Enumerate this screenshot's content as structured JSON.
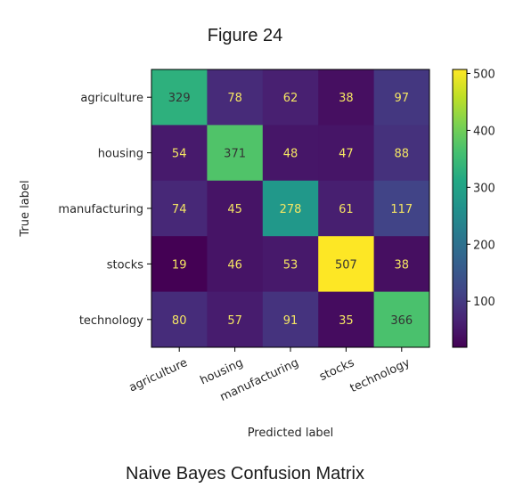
{
  "figure": {
    "title": "Figure 24",
    "caption": "Naive Bayes Confusion Matrix"
  },
  "chart_data": {
    "type": "heatmap",
    "title": "",
    "xlabel": "Predicted label",
    "ylabel": "True label",
    "x_categories": [
      "agriculture",
      "housing",
      "manufacturing",
      "stocks",
      "technology"
    ],
    "y_categories": [
      "agriculture",
      "housing",
      "manufacturing",
      "stocks",
      "technology"
    ],
    "values": [
      [
        329,
        78,
        62,
        38,
        97
      ],
      [
        54,
        371,
        48,
        47,
        88
      ],
      [
        74,
        45,
        278,
        61,
        117
      ],
      [
        19,
        46,
        53,
        507,
        38
      ],
      [
        80,
        57,
        91,
        35,
        366
      ]
    ],
    "colormap": "viridis",
    "colorbar": {
      "min": 19,
      "max": 507,
      "ticks": [
        100,
        200,
        300,
        400,
        500
      ]
    },
    "grid": false
  }
}
